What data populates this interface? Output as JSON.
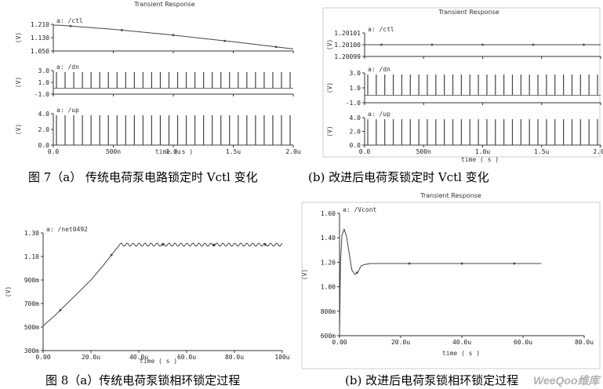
{
  "captions": {
    "fig7a": "图 7（a） 传统电荷泵电路锁定时 Vctl 变化",
    "fig7b": "(b) 改进后电荷泵锁定时 Vctl 变化",
    "fig8a": "图 8（a）传统电荷泵锁相环锁定过程",
    "fig8b": "(b) 改进后电荷泵锁相环锁定过程"
  },
  "watermark": "WeeQoo维库",
  "colors": {
    "trace": "#444444",
    "axis": "#333333",
    "tick": "#222222",
    "border": "#cccccc"
  },
  "chart_data": [
    {
      "id": "fig7a",
      "type": "line",
      "title": "Transient Response",
      "xlabel": "time ( s )",
      "xlim": [
        0,
        2.0
      ],
      "xticks": [
        "0.0",
        "500n",
        "1.0u",
        "1.5u",
        "2.0u"
      ],
      "panels": [
        {
          "signal": "a: /ctl",
          "ylabel": "(V)",
          "ylim": [
            1.05,
            1.21
          ],
          "yticks": [
            "1.210",
            "1.130",
            "1.050"
          ],
          "series": [
            {
              "x": [
                0,
                0.05,
                0.5,
                1.0,
                1.5,
                2.0
              ],
              "y": [
                1.205,
                1.205,
                1.18,
                1.145,
                1.105,
                1.062
              ]
            }
          ]
        },
        {
          "signal": "a: /dn",
          "ylabel": "(V)",
          "ylim": [
            -1.0,
            3.0
          ],
          "yticks": [
            "3.0",
            "1.0",
            "-1.0"
          ],
          "pulse_count": 28
        },
        {
          "signal": "a: /up",
          "ylabel": "(V)",
          "ylim": [
            0,
            4.0
          ],
          "yticks": [
            "4.0",
            "2.0",
            "0.0"
          ],
          "pulse_count": 28
        }
      ]
    },
    {
      "id": "fig7b",
      "type": "line",
      "title": "Transient Response",
      "xlabel": "time ( s )",
      "xlim": [
        0,
        2.0
      ],
      "xticks": [
        "0.0",
        "500n",
        "1.0u",
        "1.5u",
        "2.0u"
      ],
      "panels": [
        {
          "signal": "a: /ctl",
          "ylabel": "(V)",
          "ylim": [
            1.20099,
            1.20101
          ],
          "yticks": [
            "1.20101",
            "1.20100",
            "1.20099"
          ],
          "series": [
            {
              "x": [
                0,
                2.0
              ],
              "y": [
                1.201,
                1.201
              ]
            }
          ]
        },
        {
          "signal": "a: /dn",
          "ylabel": "(V)",
          "ylim": [
            -1.0,
            3.0
          ],
          "yticks": [
            "3.0",
            "1.0",
            "-1.0"
          ],
          "pulse_count": 28
        },
        {
          "signal": "a: /up",
          "ylabel": "(V)",
          "ylim": [
            0,
            4.0
          ],
          "yticks": [
            "4.0",
            "2.0",
            "0.0"
          ],
          "pulse_count": 28
        }
      ]
    },
    {
      "id": "fig8a",
      "type": "line",
      "title": "",
      "xlabel": "time ( s )",
      "xlim": [
        0,
        100
      ],
      "xticks": [
        "0.00",
        "20.0u",
        "40.0u",
        "60.0u",
        "80.0u",
        "100u"
      ],
      "panels": [
        {
          "signal": "a: /net0492",
          "ylabel": "(V)",
          "ylim": [
            0.3,
            1.3
          ],
          "yticks": [
            "1.30",
            "1.10",
            "900m",
            "700m",
            "500m",
            "300m"
          ],
          "series": [
            {
              "x": [
                0,
                5,
                10,
                15,
                20,
                25,
                30,
                32,
                100
              ],
              "y": [
                0.51,
                0.6,
                0.7,
                0.8,
                0.9,
                1.02,
                1.15,
                1.2,
                1.2
              ]
            }
          ],
          "ripple": {
            "from": 32,
            "amplitude": 0.012,
            "period": 2.5
          }
        }
      ]
    },
    {
      "id": "fig8b",
      "type": "line",
      "title": "Transient Response",
      "xlabel": "time ( s )",
      "xlim": [
        0,
        80
      ],
      "xticks": [
        "0.00",
        "20.0u",
        "40.0u",
        "60.0u",
        "80.0u"
      ],
      "panels": [
        {
          "signal": "a: /Vcont",
          "ylabel": "(V)",
          "ylim": [
            0.6,
            1.6
          ],
          "yticks": [
            "1.60",
            "1.40",
            "1.20",
            "1.00",
            "800m",
            "600m"
          ],
          "series": [
            {
              "x": [
                0,
                0.3,
                0.8,
                1.5,
                2.2,
                3,
                4,
                5,
                6,
                7,
                8,
                10,
                13,
                20,
                40,
                60,
                66
              ],
              "y": [
                0.6,
                1.2,
                1.42,
                1.47,
                1.42,
                1.3,
                1.14,
                1.1,
                1.12,
                1.17,
                1.18,
                1.19,
                1.19,
                1.19,
                1.19,
                1.19,
                1.19
              ]
            }
          ]
        }
      ]
    }
  ]
}
